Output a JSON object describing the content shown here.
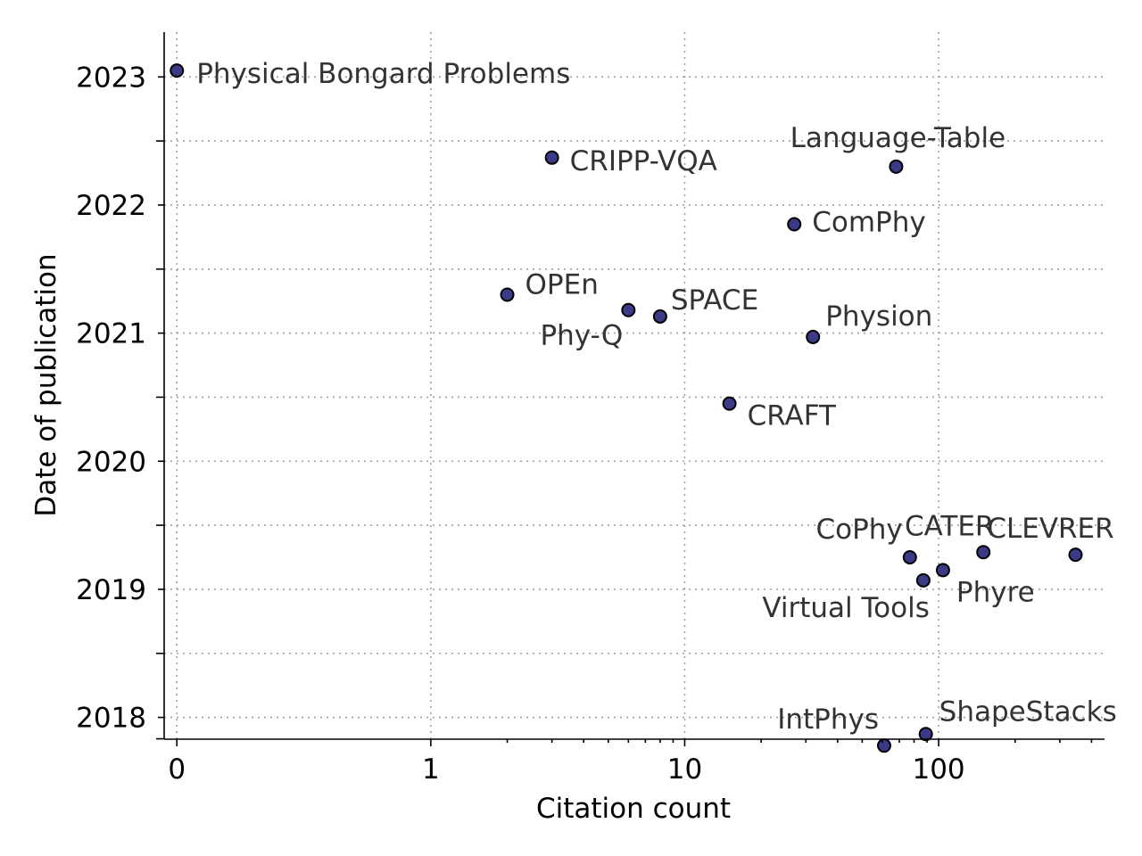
{
  "chart_data": {
    "type": "scatter",
    "title": "",
    "xlabel": "Citation count",
    "ylabel": "Date of publication",
    "x_scale": "symlog",
    "xlim": [
      -0.05,
      450
    ],
    "ylim": [
      2017.83,
      2023.35
    ],
    "x_ticks": [
      0,
      1,
      10,
      100
    ],
    "x_tick_labels": [
      "0",
      "1",
      "10",
      "100"
    ],
    "y_ticks": [
      2018,
      2019,
      2020,
      2021,
      2022,
      2023
    ],
    "y_tick_labels": [
      "2018",
      "2019",
      "2020",
      "2021",
      "2022",
      "2023"
    ],
    "grid": true,
    "marker_color": "#3a3a86",
    "points": [
      {
        "name": "Physical Bongard Problems",
        "x": 0,
        "y": 2023.05
      },
      {
        "name": "CRIPP-VQA",
        "x": 3,
        "y": 2022.37
      },
      {
        "name": "Language-Table",
        "x": 68,
        "y": 2022.3
      },
      {
        "name": "ComPhy",
        "x": 27,
        "y": 2021.85
      },
      {
        "name": "OPEn",
        "x": 2,
        "y": 2021.3
      },
      {
        "name": "Phy-Q",
        "x": 6,
        "y": 2021.18
      },
      {
        "name": "SPACE",
        "x": 8,
        "y": 2021.13
      },
      {
        "name": "Physion",
        "x": 32,
        "y": 2020.97
      },
      {
        "name": "CRAFT",
        "x": 15,
        "y": 2020.45
      },
      {
        "name": "CoPhy",
        "x": 77,
        "y": 2019.25
      },
      {
        "name": "Virtual Tools",
        "x": 87,
        "y": 2019.07
      },
      {
        "name": "Phyre",
        "x": 104,
        "y": 2019.15
      },
      {
        "name": "CATER",
        "x": 150,
        "y": 2019.29
      },
      {
        "name": "CLEVRER",
        "x": 346,
        "y": 2019.27
      },
      {
        "name": "IntPhys",
        "x": 61,
        "y": 2017.78
      },
      {
        "name": "ShapeStacks",
        "x": 89,
        "y": 2017.87
      }
    ]
  }
}
